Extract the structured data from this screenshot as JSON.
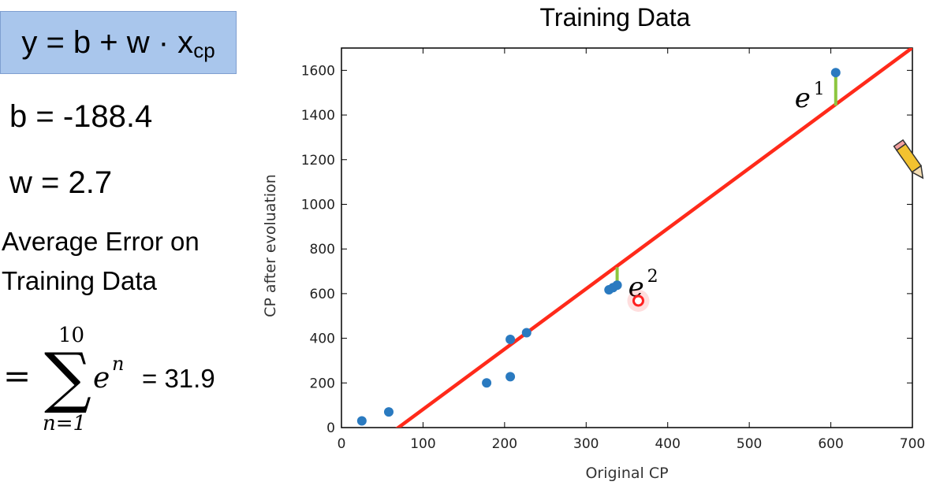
{
  "left_panel": {
    "formula_main": "y = b + w · x",
    "formula_sub": "cp",
    "b_text": "b = -188.4",
    "w_text": "w = 2.7",
    "avg_error_line1": "Average Error on",
    "avg_error_line2": "Training Data",
    "sum_equals": "=",
    "sum_symbol": "∑",
    "sum_upper": "10",
    "sum_lower": "n=1",
    "sum_term_base": "e",
    "sum_term_exp": "n",
    "sum_value": "= 31.9"
  },
  "chart_data": {
    "type": "scatter",
    "title": "Training Data",
    "xlabel": "Original CP",
    "ylabel": "CP after evoluation",
    "xlim": [
      0,
      700
    ],
    "ylim": [
      0,
      1700
    ],
    "xticks": [
      0,
      100,
      200,
      300,
      400,
      500,
      600,
      700
    ],
    "yticks": [
      0,
      200,
      400,
      600,
      800,
      1000,
      1200,
      1400,
      1600
    ],
    "points": [
      {
        "x": 25,
        "y": 30
      },
      {
        "x": 58,
        "y": 70
      },
      {
        "x": 178,
        "y": 200
      },
      {
        "x": 207,
        "y": 228
      },
      {
        "x": 207,
        "y": 395
      },
      {
        "x": 227,
        "y": 425
      },
      {
        "x": 328,
        "y": 617
      },
      {
        "x": 333,
        "y": 627
      },
      {
        "x": 338,
        "y": 638
      },
      {
        "x": 606,
        "y": 1590
      }
    ],
    "fit_line": {
      "b": -188.4,
      "w": 2.7,
      "color": "#ff2a1a"
    },
    "point_color": "#2a7ac0",
    "error_color": "#8dc63f",
    "errors": [
      {
        "label_base": "e",
        "label_exp": "1",
        "x": 606,
        "y_top": 1590,
        "y_bottom": 1442
      },
      {
        "label_base": "e",
        "label_exp": "2",
        "x": 338,
        "y_top": 638,
        "y_bottom": 718
      }
    ],
    "marker": {
      "x": 364,
      "y": 568,
      "color": "#ff2020"
    }
  }
}
